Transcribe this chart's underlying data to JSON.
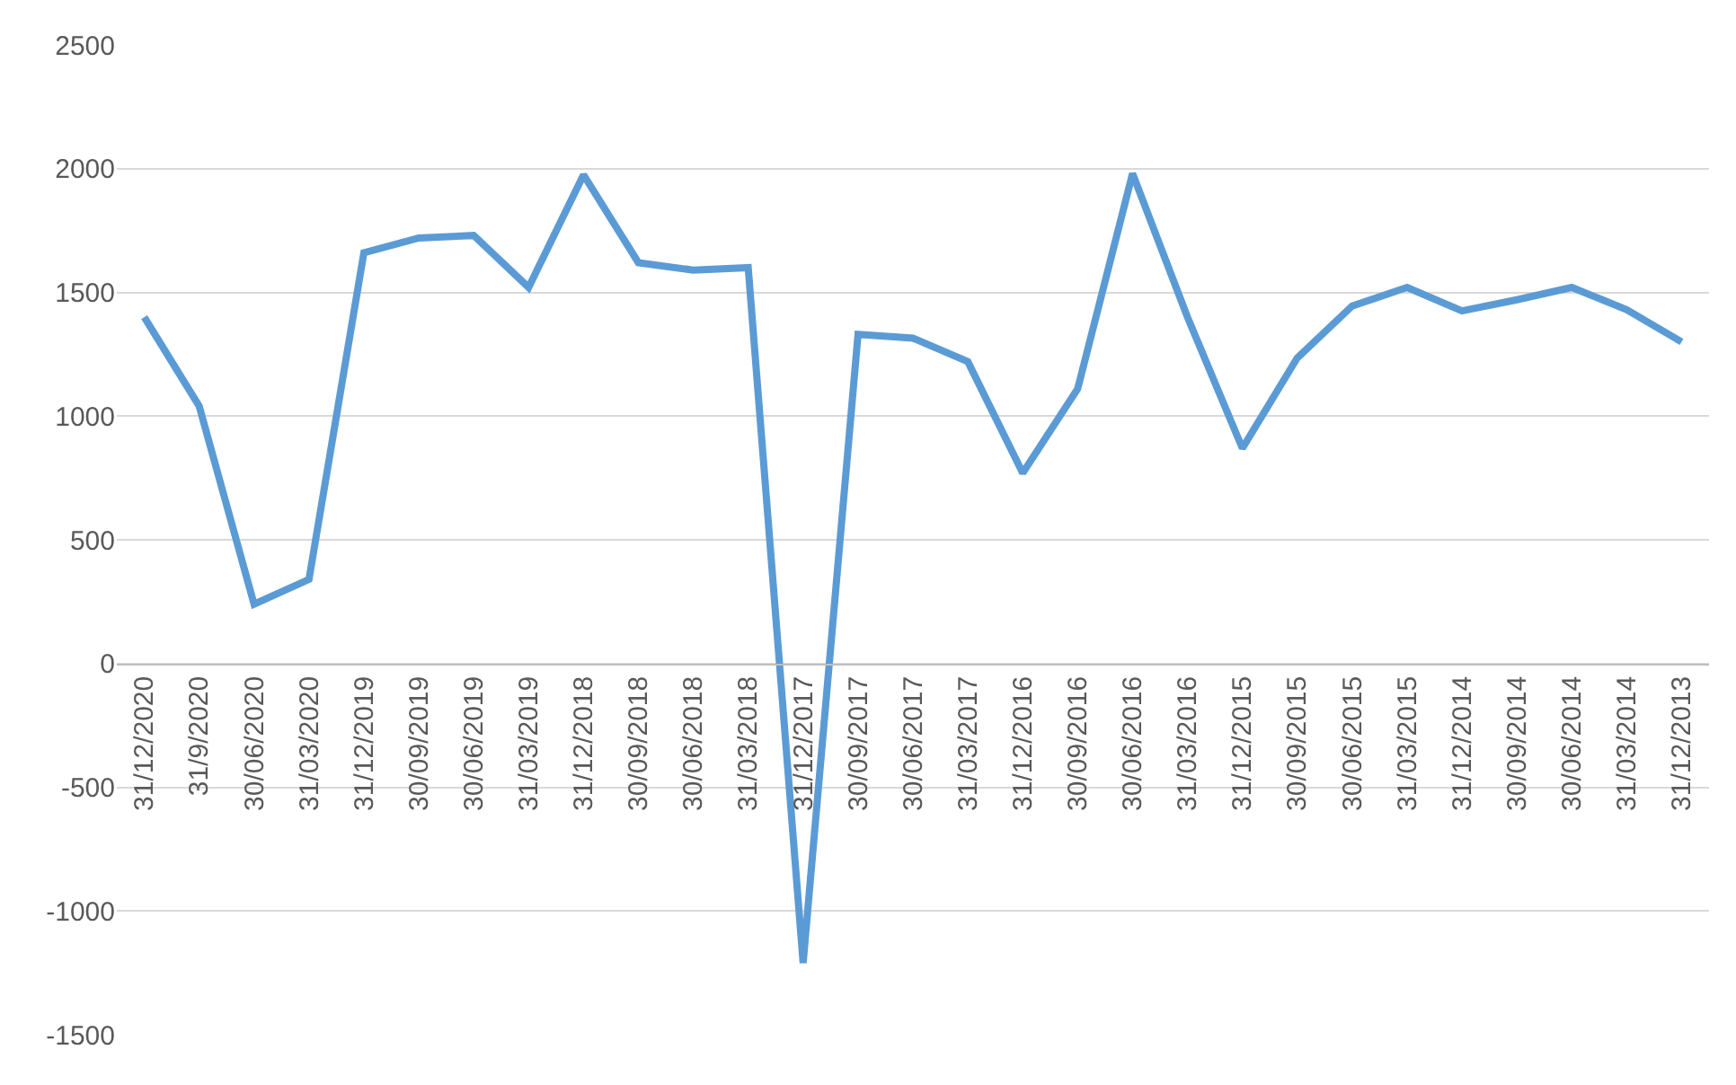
{
  "chart_data": {
    "type": "line",
    "categories": [
      "31/12/2020",
      "31/9/2020",
      "30/06/2020",
      "31/03/2020",
      "31/12/2019",
      "30/09/2019",
      "30/06/2019",
      "31/03/2019",
      "31/12/2018",
      "30/09/2018",
      "30/06/2018",
      "31/03/2018",
      "31/12/2017",
      "30/09/2017",
      "30/06/2017",
      "31/03/2017",
      "31/12/2016",
      "30/09/2016",
      "30/06/2016",
      "31/03/2016",
      "31/12/2015",
      "30/09/2015",
      "30/06/2015",
      "31/03/2015",
      "31/12/2014",
      "30/09/2014",
      "30/06/2014",
      "31/03/2014",
      "31/12/2013"
    ],
    "series": [
      {
        "color": "#5b9bd5",
        "values": [
          1400,
          1040,
          240,
          340,
          1660,
          1720,
          1730,
          1520,
          1975,
          1620,
          1590,
          1600,
          -1210,
          1330,
          1315,
          1220,
          770,
          1110,
          1980,
          1400,
          870,
          1235,
          1445,
          1520,
          1425,
          1470,
          1520,
          1430,
          1300
        ]
      }
    ],
    "ylim": [
      -1500,
      2500
    ],
    "yticks": [
      -1500,
      -1000,
      -500,
      0,
      500,
      1000,
      1500,
      2000,
      2500
    ],
    "grid": "y",
    "legend": false,
    "marker": "none",
    "line_style": "solid"
  }
}
